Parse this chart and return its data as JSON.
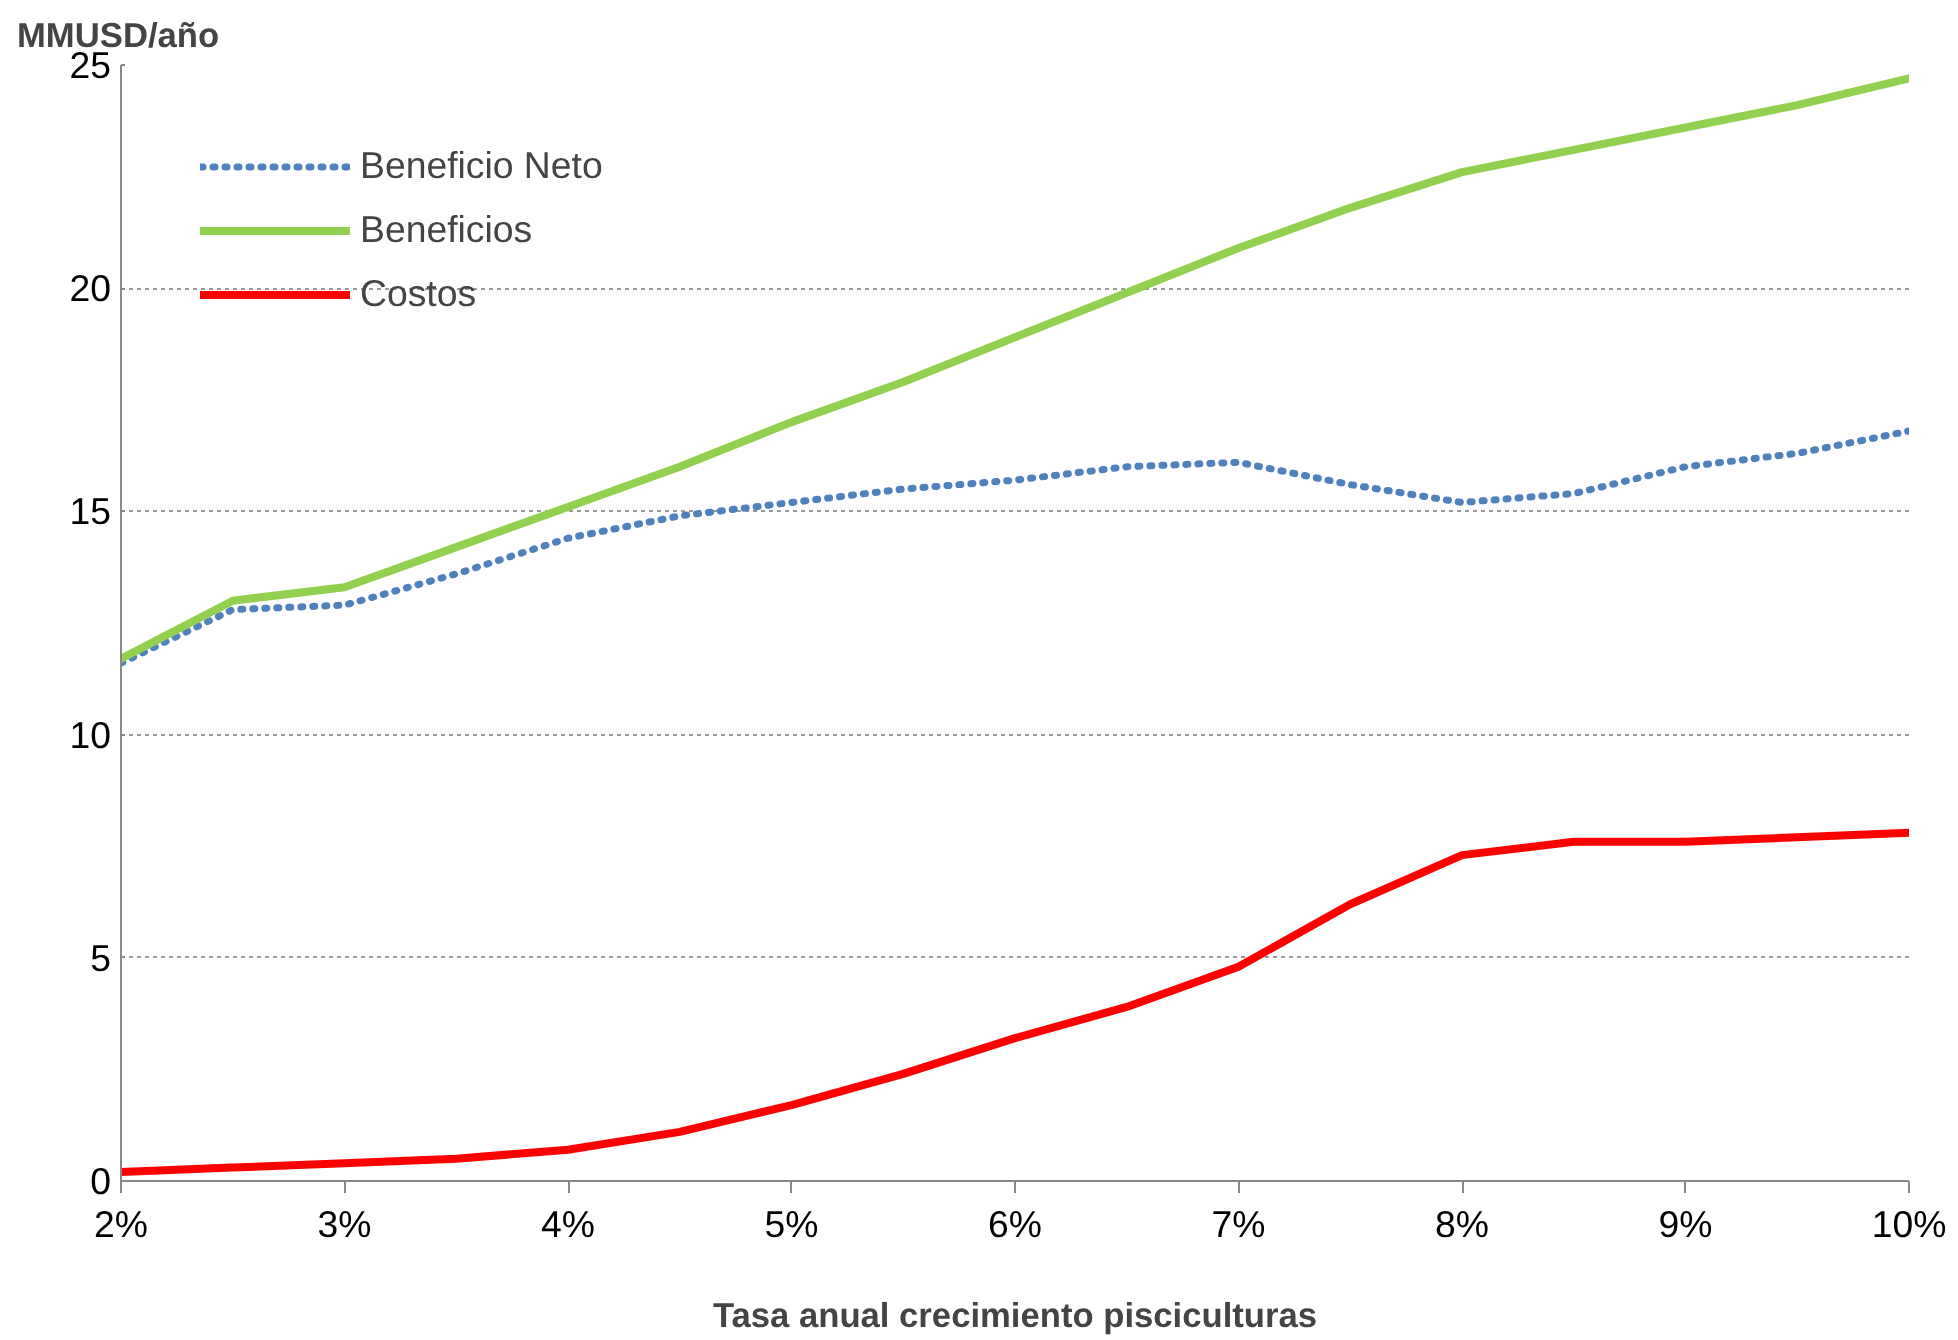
{
  "chart_data": {
    "type": "line",
    "xlabel": "Tasa anual crecimiento pisciculturas",
    "ylabel": "MMUSD/año",
    "xlim": [
      2,
      10
    ],
    "ylim": [
      0,
      25
    ],
    "xticks": [
      {
        "value": 2,
        "label": "2%"
      },
      {
        "value": 3,
        "label": "3%"
      },
      {
        "value": 4,
        "label": "4%"
      },
      {
        "value": 5,
        "label": "5%"
      },
      {
        "value": 6,
        "label": "6%"
      },
      {
        "value": 7,
        "label": "7%"
      },
      {
        "value": 8,
        "label": "8%"
      },
      {
        "value": 9,
        "label": "9%"
      },
      {
        "value": 10,
        "label": "10%"
      }
    ],
    "yticks": [
      0,
      5,
      10,
      15,
      20,
      25
    ],
    "grid": "y",
    "legend": "top left",
    "marker": "none",
    "series": [
      {
        "name": "Beneficio Neto",
        "color": "#4f81bd",
        "line_style": "dotted",
        "x": [
          2,
          2.5,
          3,
          3.5,
          4,
          4.5,
          5,
          5.5,
          6,
          6.5,
          7,
          7.5,
          8,
          8.5,
          9,
          9.5,
          10
        ],
        "values": [
          11.6,
          12.8,
          12.9,
          13.6,
          14.4,
          14.9,
          15.2,
          15.5,
          15.7,
          16.0,
          16.1,
          15.6,
          15.2,
          15.4,
          16.0,
          16.3,
          16.8
        ]
      },
      {
        "name": "Beneficios",
        "color": "#92d050",
        "line_style": "solid",
        "x": [
          2,
          2.5,
          3,
          3.5,
          4,
          4.5,
          5,
          5.5,
          6,
          6.5,
          7,
          7.5,
          8,
          8.5,
          9,
          9.5,
          10
        ],
        "values": [
          11.7,
          13.0,
          13.3,
          14.2,
          15.1,
          16.0,
          17.0,
          17.9,
          18.9,
          19.9,
          20.9,
          21.8,
          22.6,
          23.1,
          23.6,
          24.1,
          24.7
        ]
      },
      {
        "name": "Costos",
        "color": "#ff0000",
        "line_style": "solid",
        "x": [
          2,
          2.5,
          3,
          3.5,
          4,
          4.5,
          5,
          5.5,
          6,
          6.5,
          7,
          7.5,
          8,
          8.5,
          9,
          9.5,
          10
        ],
        "values": [
          0.2,
          0.3,
          0.4,
          0.5,
          0.7,
          1.1,
          1.7,
          2.4,
          3.2,
          3.9,
          4.8,
          6.2,
          7.3,
          7.6,
          7.6,
          7.7,
          7.8
        ]
      }
    ]
  }
}
